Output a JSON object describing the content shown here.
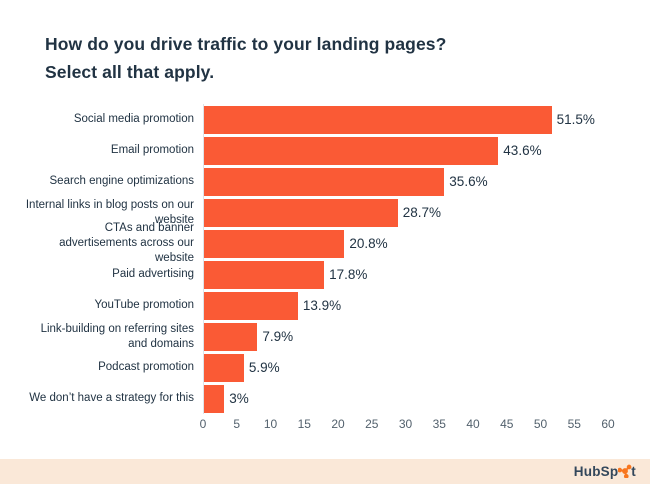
{
  "title": {
    "line1": "How do you drive traffic to your landing pages?",
    "line2": "Select all that apply.",
    "color": "#213343"
  },
  "chart_data": {
    "type": "bar",
    "orientation": "horizontal",
    "title": "How do you drive traffic to your landing pages? Select all that apply.",
    "categories": [
      "Social media promotion",
      "Email promotion",
      "Search engine optimizations",
      "Internal links in blog posts on our website",
      "CTAs and banner advertisements across our website",
      "Paid advertising",
      "YouTube promotion",
      "Link-building on referring sites and domains",
      "Podcast promotion",
      "We don’t have a strategy for this"
    ],
    "values": [
      51.5,
      43.6,
      35.6,
      28.7,
      20.8,
      17.8,
      13.9,
      7.9,
      5.9,
      3
    ],
    "value_labels": [
      "51.5%",
      "43.6%",
      "35.6%",
      "28.7%",
      "20.8%",
      "17.8%",
      "13.9%",
      "7.9%",
      "5.9%",
      "3%"
    ],
    "xlim": [
      0,
      60
    ],
    "x_ticks": [
      0,
      5,
      10,
      15,
      20,
      25,
      30,
      35,
      40,
      45,
      50,
      55,
      60
    ],
    "bar_color": "#FA5A35",
    "category_label_color": "#213343",
    "value_label_color": "#213343",
    "tick_label_color": "#53616D",
    "grid": false,
    "legend": false
  },
  "footer": {
    "band_color": "#FAE8D8",
    "logo_name": "HubSpot",
    "logo_text_before": "HubSp",
    "logo_text_after": "t",
    "logo_text_color": "#33475B",
    "sprocket_color": "#F8761F"
  }
}
